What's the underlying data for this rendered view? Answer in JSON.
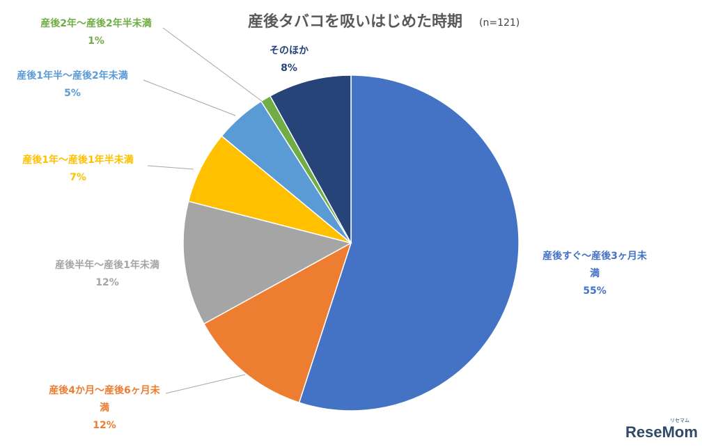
{
  "chart_data": {
    "type": "pie",
    "title": "産後タバコを吸いはじめた時期",
    "subtitle": "(n=121)",
    "slices": [
      {
        "label": "産後すぐ～産後3ヶ月未満",
        "label_lines": [
          "産後すぐ～産後3ヶ月未",
          "満"
        ],
        "value": 55,
        "value_text": "55%",
        "color": "#4472C4"
      },
      {
        "label": "産後4か月～産後6ヶ月未満",
        "label_lines": [
          "産後4か月～産後6ヶ月未",
          "満"
        ],
        "value": 12,
        "value_text": "12%",
        "color": "#ED7D31"
      },
      {
        "label": "産後半年～産後1年未満",
        "label_lines": [
          "産後半年～産後1年未満"
        ],
        "value": 12,
        "value_text": "12%",
        "color": "#A5A5A5"
      },
      {
        "label": "産後1年～産後1年半未満",
        "label_lines": [
          "産後1年～産後1年半未満"
        ],
        "value": 7,
        "value_text": "7%",
        "color": "#FFC000"
      },
      {
        "label": "産後1年半～産後2年未満",
        "label_lines": [
          "産後1年半～産後2年未満"
        ],
        "value": 5,
        "value_text": "5%",
        "color": "#5B9BD5"
      },
      {
        "label": "産後2年～産後2年半未満",
        "label_lines": [
          "産後2年～産後2年半未満"
        ],
        "value": 1,
        "value_text": "1%",
        "color": "#70AD47"
      },
      {
        "label": "そのほか",
        "label_lines": [
          "そのほか"
        ],
        "value": 8,
        "value_text": "8%",
        "color": "#264478"
      }
    ]
  },
  "watermark": {
    "main": "ReseMom",
    "small": "リセマム"
  }
}
